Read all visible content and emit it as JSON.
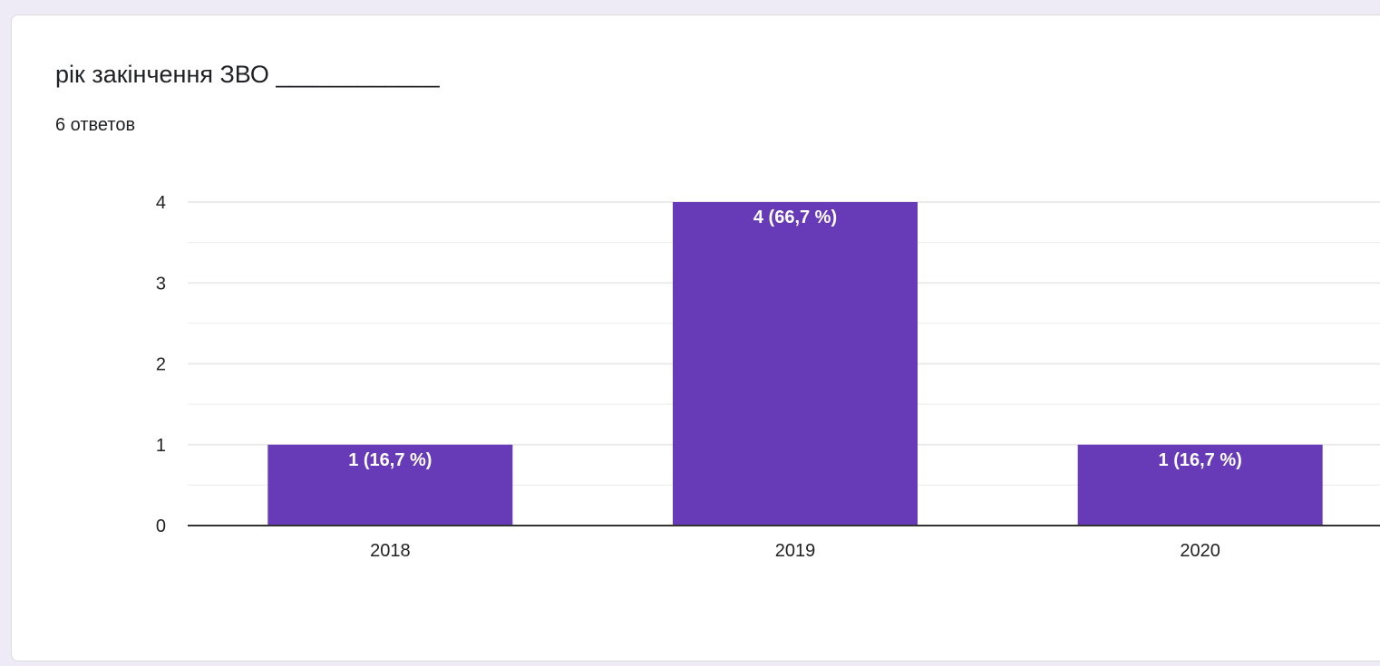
{
  "question": {
    "title": "рік закінчення ЗВО ____________",
    "responses": "6 ответов"
  },
  "colors": {
    "bar": "#673ab7",
    "grid": "#ebebeb",
    "baseline": "#333333",
    "background": "#eeebf6"
  },
  "chart_data": {
    "type": "bar",
    "categories": [
      "2018",
      "2019",
      "2020"
    ],
    "values": [
      1,
      4,
      1
    ],
    "data_labels": [
      "1 (16,7 %)",
      "4 (66,7 %)",
      "1 (16,7 %)"
    ],
    "yticks": [
      "0",
      "1",
      "2",
      "3",
      "4"
    ],
    "ylim": [
      0,
      4
    ],
    "grid": true,
    "title": "",
    "xlabel": "",
    "ylabel": ""
  }
}
